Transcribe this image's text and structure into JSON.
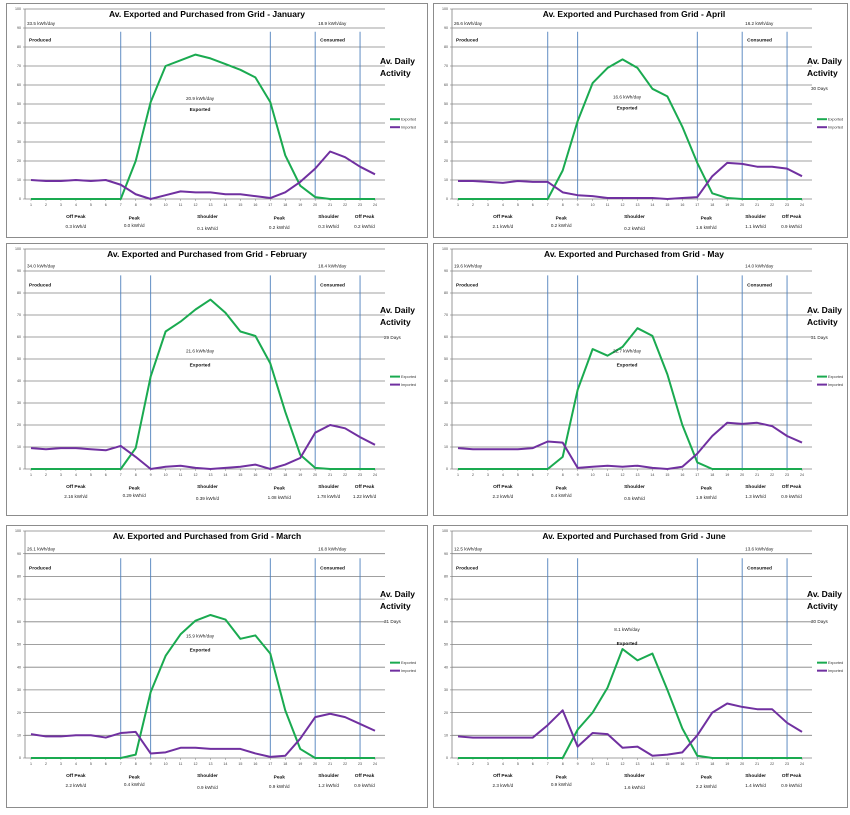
{
  "colors": {
    "exported": "#1aaa50",
    "imported": "#7030a0",
    "divider": "#4f81bd",
    "grid": "#808080"
  },
  "chart_data": [
    {
      "type": "line",
      "month": "January",
      "title": "Av. Exported and Purchased from Grid - January",
      "x": [
        1,
        2,
        3,
        4,
        5,
        6,
        7,
        8,
        9,
        10,
        11,
        12,
        13,
        14,
        15,
        16,
        17,
        18,
        19,
        20,
        21,
        22,
        23,
        24
      ],
      "x_ticks": [
        "1",
        "2",
        "3",
        "4",
        "5",
        "6",
        "7",
        "8",
        "9",
        "10",
        "11",
        "12",
        "13",
        "14",
        "15",
        "16",
        "17",
        "18",
        "19",
        "20",
        "21",
        "22",
        "23",
        "24"
      ],
      "y_ticks": [
        "0",
        "10",
        "20",
        "30",
        "40",
        "50",
        "60",
        "70",
        "80",
        "90",
        "100"
      ],
      "ylim": [
        0,
        100
      ],
      "dividers": [
        7,
        9,
        17,
        20,
        23
      ],
      "produced_value": "33.5 kWh/day",
      "produced_label": "Produced",
      "consumed_value": "18.9 kWh/day",
      "consumed_label": "Consumed",
      "exported_value": "20.9 kWh/day",
      "exported_label": "Exported",
      "activity_title_1": "Av. Daily",
      "activity_title_2": "Activity",
      "days": "",
      "legend": [
        "Exported",
        "Imported"
      ],
      "series": [
        {
          "name": "Exported",
          "values": [
            0,
            0,
            0,
            0,
            0,
            0,
            0,
            20,
            51,
            70,
            73,
            76,
            74,
            71,
            68,
            64,
            51,
            23,
            7,
            1,
            0,
            0,
            0,
            0
          ]
        },
        {
          "name": "Imported",
          "values": [
            10,
            9.5,
            9.5,
            10,
            9.5,
            10,
            7.5,
            2.5,
            0,
            2,
            4,
            3.5,
            3.5,
            2.5,
            2.5,
            1.5,
            0.5,
            3.5,
            9,
            16,
            25,
            22,
            17,
            13
          ]
        }
      ],
      "periods": [
        {
          "label": "Off Peak",
          "value": "0.3 kWh/d"
        },
        {
          "label": "Peak",
          "value": "0.0 kWh/d"
        },
        {
          "label": "Shoulder",
          "value": "0.1 kWh/d"
        },
        {
          "label": "Peak",
          "value": "0.2 kWh/d"
        },
        {
          "label": "Shoulder",
          "value": "0.3 kWh/d"
        },
        {
          "label": "Off Peak",
          "value": "0.2 kWh/d"
        }
      ]
    },
    {
      "type": "line",
      "month": "April",
      "title": "Av. Exported and Purchased from Grid - April",
      "x": [
        1,
        2,
        3,
        4,
        5,
        6,
        7,
        8,
        9,
        10,
        11,
        12,
        13,
        14,
        15,
        16,
        17,
        18,
        19,
        20,
        21,
        22,
        23,
        24
      ],
      "x_ticks": [
        "1",
        "2",
        "3",
        "4",
        "5",
        "6",
        "7",
        "8",
        "9",
        "10",
        "11",
        "12",
        "13",
        "14",
        "15",
        "16",
        "17",
        "18",
        "19",
        "20",
        "21",
        "22",
        "23",
        "24"
      ],
      "y_ticks": [
        "0",
        "10",
        "20",
        "30",
        "40",
        "50",
        "60",
        "70",
        "80",
        "90",
        "100"
      ],
      "ylim": [
        0,
        100
      ],
      "dividers": [
        7,
        9,
        17,
        20,
        23
      ],
      "produced_value": "26.6 kWh/day",
      "produced_label": "Produced",
      "consumed_value": "16.2 kWh/day",
      "consumed_label": "Consumed",
      "exported_value": "16.6 kWh/day",
      "exported_label": "Exported",
      "activity_title_1": "Av. Daily",
      "activity_title_2": "Activity",
      "days": "30 Days",
      "legend": [
        "Exported",
        "Imported"
      ],
      "series": [
        {
          "name": "Exported",
          "values": [
            0,
            0,
            0,
            0,
            0,
            0,
            0,
            15,
            41,
            61,
            69,
            73.5,
            69,
            58,
            54,
            38,
            19,
            3,
            0.5,
            0,
            0,
            0,
            0,
            0
          ]
        },
        {
          "name": "Imported",
          "values": [
            9.5,
            9.5,
            9,
            8.5,
            9.5,
            9,
            9,
            3.5,
            2,
            1.5,
            0.5,
            0.5,
            0.5,
            0.5,
            0,
            0.5,
            1,
            12,
            19,
            18.5,
            17,
            17,
            16,
            12
          ]
        }
      ],
      "periods": [
        {
          "label": "Off Peak",
          "value": "2.1 kWh/d"
        },
        {
          "label": "Peak",
          "value": "0.2 kWh/d"
        },
        {
          "label": "Shoulder",
          "value": "0.2 kWh/d"
        },
        {
          "label": "Peak",
          "value": "1.6 kWh/d"
        },
        {
          "label": "Shoulder",
          "value": "1.1 kWh/d"
        },
        {
          "label": "Off Peak",
          "value": "0.9 kWh/d"
        }
      ]
    },
    {
      "type": "line",
      "month": "February",
      "title": "Av. Exported and Purchased from Grid - February",
      "x": [
        1,
        2,
        3,
        4,
        5,
        6,
        7,
        8,
        9,
        10,
        11,
        12,
        13,
        14,
        15,
        16,
        17,
        18,
        19,
        20,
        21,
        22,
        23,
        24
      ],
      "x_ticks": [
        "1",
        "2",
        "3",
        "4",
        "5",
        "6",
        "7",
        "8",
        "9",
        "10",
        "11",
        "12",
        "13",
        "14",
        "15",
        "16",
        "17",
        "18",
        "19",
        "20",
        "21",
        "22",
        "23",
        "24"
      ],
      "y_ticks": [
        "0",
        "10",
        "20",
        "30",
        "40",
        "50",
        "60",
        "70",
        "80",
        "90",
        "100"
      ],
      "ylim": [
        0,
        100
      ],
      "dividers": [
        7,
        9,
        17,
        20,
        23
      ],
      "produced_value": "34.0 kWh/day",
      "produced_label": "Produced",
      "consumed_value": "18.4 kWh/day",
      "consumed_label": "Consumed",
      "exported_value": "21.6 kWh/day",
      "exported_label": "Exported",
      "activity_title_1": "Av. Daily",
      "activity_title_2": "Activity",
      "days": "29 Days",
      "legend": [
        "Exported",
        "Imported"
      ],
      "series": [
        {
          "name": "Exported",
          "values": [
            0,
            0,
            0,
            0,
            0,
            0,
            0,
            9.5,
            42,
            62.5,
            67,
            72.5,
            77,
            71,
            62.5,
            60.5,
            48,
            26,
            6.5,
            0.5,
            0,
            0,
            0,
            0
          ]
        },
        {
          "name": "Imported",
          "values": [
            9.5,
            9,
            9.5,
            9.5,
            9,
            8.5,
            10.5,
            5.5,
            0,
            1,
            1.5,
            0.5,
            0,
            0.5,
            1,
            2,
            0,
            2,
            5,
            16.5,
            20,
            18.5,
            14.5,
            11
          ]
        }
      ],
      "periods": [
        {
          "label": "Off Peak",
          "value": "2.16 kWh/d"
        },
        {
          "label": "Peak",
          "value": "0.29 kWh/d"
        },
        {
          "label": "Shoulder",
          "value": "0.39 kWh/d"
        },
        {
          "label": "Peak",
          "value": "1.08 kWh/d"
        },
        {
          "label": "Shoulder",
          "value": "1.78 kWh/d"
        },
        {
          "label": "Off Peak",
          "value": "1.22 kWh/d"
        }
      ]
    },
    {
      "type": "line",
      "month": "May",
      "title": "Av. Exported and Purchased from Grid - May",
      "x": [
        1,
        2,
        3,
        4,
        5,
        6,
        7,
        8,
        9,
        10,
        11,
        12,
        13,
        14,
        15,
        16,
        17,
        18,
        19,
        20,
        21,
        22,
        23,
        24
      ],
      "x_ticks": [
        "1",
        "2",
        "3",
        "4",
        "5",
        "6",
        "7",
        "8",
        "9",
        "10",
        "11",
        "12",
        "13",
        "14",
        "15",
        "16",
        "17",
        "18",
        "19",
        "20",
        "21",
        "22",
        "23",
        "24"
      ],
      "y_ticks": [
        "0",
        "10",
        "20",
        "30",
        "40",
        "50",
        "60",
        "70",
        "80",
        "90",
        "100"
      ],
      "ylim": [
        0,
        100
      ],
      "dividers": [
        7,
        9,
        17,
        20,
        23
      ],
      "produced_value": "19.6 kWh/day",
      "produced_label": "Produced",
      "consumed_value": "14.0 kWh/day",
      "consumed_label": "Consumed",
      "exported_value": "22.7 kWh/day",
      "exported_label": "Exported",
      "activity_title_1": "Av. Daily",
      "activity_title_2": "Activity",
      "days": "31 Days",
      "legend": [
        "Exported",
        "Imported"
      ],
      "series": [
        {
          "name": "Exported",
          "values": [
            0,
            0,
            0,
            0,
            0,
            0,
            0,
            5.5,
            36,
            54.5,
            51.5,
            55.5,
            64,
            60.5,
            43,
            20,
            3,
            0,
            0,
            0,
            0,
            0,
            0,
            0
          ]
        },
        {
          "name": "Imported",
          "values": [
            9.5,
            9,
            9,
            9,
            9,
            9.5,
            12.5,
            12,
            0.5,
            1,
            1.5,
            1,
            1.5,
            0.5,
            0,
            1,
            7,
            15,
            21,
            20.5,
            21,
            19.5,
            15,
            12
          ]
        }
      ],
      "periods": [
        {
          "label": "Off Peak",
          "value": "2.2 kWh/d"
        },
        {
          "label": "Peak",
          "value": "0.4 kWh/d"
        },
        {
          "label": "Shoulder",
          "value": "0.5 kWh/d"
        },
        {
          "label": "Peak",
          "value": "1.9 kWh/d"
        },
        {
          "label": "Shoulder",
          "value": "1.3 kWh/d"
        },
        {
          "label": "Off Peak",
          "value": "0.9 kWh/d"
        }
      ]
    },
    {
      "type": "line",
      "month": "March",
      "title": "Av. Exported and Purchased from Grid - March",
      "x": [
        1,
        2,
        3,
        4,
        5,
        6,
        7,
        8,
        9,
        10,
        11,
        12,
        13,
        14,
        15,
        16,
        17,
        18,
        19,
        20,
        21,
        22,
        23,
        24
      ],
      "x_ticks": [
        "1",
        "2",
        "3",
        "4",
        "5",
        "6",
        "7",
        "8",
        "9",
        "10",
        "11",
        "12",
        "13",
        "14",
        "15",
        "16",
        "17",
        "18",
        "19",
        "20",
        "21",
        "22",
        "23",
        "24"
      ],
      "y_ticks": [
        "0",
        "10",
        "20",
        "30",
        "40",
        "50",
        "60",
        "70",
        "80",
        "90",
        "100"
      ],
      "ylim": [
        0,
        100
      ],
      "dividers": [
        7,
        9,
        17,
        20,
        23
      ],
      "produced_value": "26.1 kWh/day",
      "produced_label": "Produced",
      "consumed_value": "16.8 kWh/day",
      "consumed_label": "Consumed",
      "exported_value": "15.9 kWh/day",
      "exported_label": "Exported",
      "activity_title_1": "Av. Daily",
      "activity_title_2": "Activity",
      "days": "31 Days",
      "legend": [
        "Exported",
        "Imported"
      ],
      "series": [
        {
          "name": "Exported",
          "values": [
            0,
            0,
            0,
            0,
            0,
            0,
            0,
            1.5,
            29,
            45,
            54.5,
            60.5,
            63,
            61,
            52.5,
            54,
            46,
            21,
            4,
            0,
            0,
            0,
            0,
            0
          ]
        },
        {
          "name": "Imported",
          "values": [
            10.5,
            9.5,
            9.5,
            10,
            10,
            9,
            11,
            11.5,
            2,
            2.5,
            4.5,
            4.5,
            4,
            4,
            4,
            2,
            0.5,
            1,
            8.5,
            18,
            19.5,
            18,
            15,
            12
          ]
        }
      ],
      "periods": [
        {
          "label": "Off Peak",
          "value": "2.2 kWh/d"
        },
        {
          "label": "Peak",
          "value": "0.4 kWh/d"
        },
        {
          "label": "Shoulder",
          "value": "0.9 kWh/d"
        },
        {
          "label": "Peak",
          "value": "0.9 kWh/d"
        },
        {
          "label": "Shoulder",
          "value": "1.2 kWh/d"
        },
        {
          "label": "Off Peak",
          "value": "0.9 kWh/d"
        }
      ]
    },
    {
      "type": "line",
      "month": "June",
      "title": "Av. Exported and Purchased from Grid - June",
      "x": [
        1,
        2,
        3,
        4,
        5,
        6,
        7,
        8,
        9,
        10,
        11,
        12,
        13,
        14,
        15,
        16,
        17,
        18,
        19,
        20,
        21,
        22,
        23,
        24
      ],
      "x_ticks": [
        "1",
        "2",
        "3",
        "4",
        "5",
        "6",
        "7",
        "8",
        "9",
        "10",
        "11",
        "12",
        "13",
        "14",
        "15",
        "16",
        "17",
        "18",
        "19",
        "20",
        "21",
        "22",
        "23",
        "24"
      ],
      "y_ticks": [
        "0",
        "10",
        "20",
        "30",
        "40",
        "50",
        "60",
        "70",
        "80",
        "90",
        "100"
      ],
      "ylim": [
        0,
        100
      ],
      "dividers": [
        7,
        9,
        17,
        20,
        23
      ],
      "produced_value": "12.5 kWh/day",
      "produced_label": "Produced",
      "consumed_value": "13.6 kWh/day",
      "consumed_label": "Consumed",
      "exported_value": "8.1 kWh/day",
      "exported_label": "Exported",
      "activity_title_1": "Av. Daily",
      "activity_title_2": "Activity",
      "days": "30 Days",
      "legend": [
        "Exported",
        "Imported"
      ],
      "series": [
        {
          "name": "Exported",
          "values": [
            0,
            0,
            0,
            0,
            0,
            0,
            0,
            0,
            12.5,
            20,
            31,
            48,
            43,
            46,
            30,
            13,
            1,
            0,
            0,
            0,
            0,
            0,
            0,
            0
          ]
        },
        {
          "name": "Imported",
          "values": [
            9.5,
            9,
            9,
            9,
            9,
            9,
            14.5,
            21,
            5,
            11,
            10.5,
            4.5,
            5,
            1,
            1.5,
            2.5,
            10,
            20,
            24,
            22.5,
            21.5,
            21.5,
            15.5,
            11.5
          ]
        }
      ],
      "periods": [
        {
          "label": "Off Peak",
          "value": "2.3 kWh/d"
        },
        {
          "label": "Peak",
          "value": "0.9 kWh/d"
        },
        {
          "label": "Shoulder",
          "value": "1.6 kWh/d"
        },
        {
          "label": "Peak",
          "value": "2.2 kWh/d"
        },
        {
          "label": "Shoulder",
          "value": "1.4 kWh/d"
        },
        {
          "label": "Off Peak",
          "value": "0.9 kWh/d"
        }
      ]
    }
  ]
}
